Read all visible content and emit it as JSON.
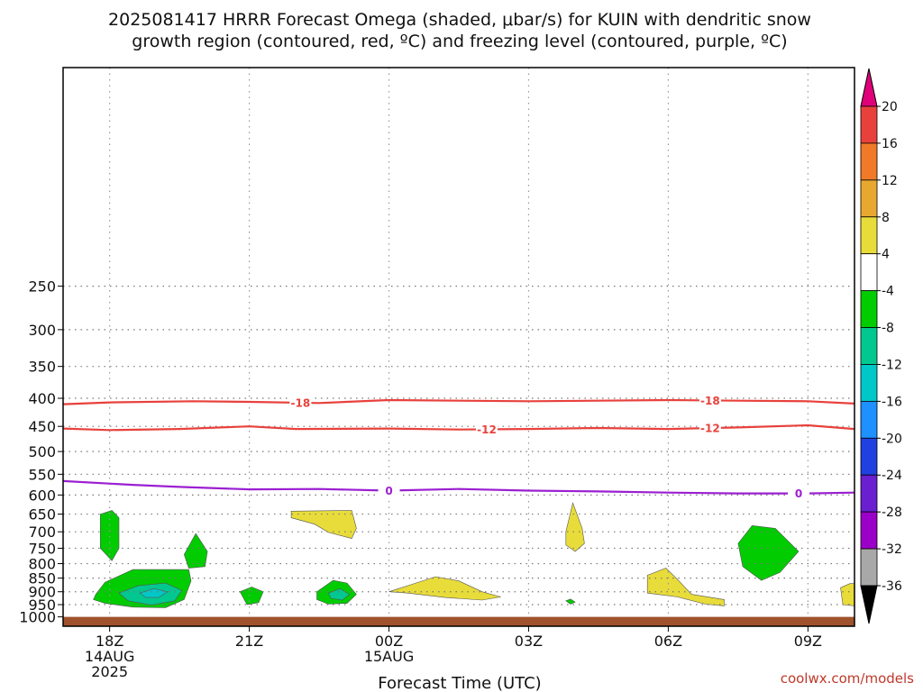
{
  "chart_data": {
    "type": "time-height cross section",
    "title_lines": [
      "2025081417 HRRR Forecast Omega (shaded, μbar/s) for KUIN with dendritic snow",
      "growth region (contoured, red, ºC) and freezing level (contoured, purple, ºC)"
    ],
    "xlabel": "Forecast Time (UTC)",
    "credit": "coolwx.com/models",
    "x_range_hours": [
      -1.0,
      16.0
    ],
    "y_range_hpa": [
      100,
      1040
    ],
    "y_scale": "log-pressure, inverted",
    "grid": "dotted",
    "x_ticks": [
      {
        "hour": 0,
        "lines": [
          "18Z",
          "14AUG",
          "2025"
        ]
      },
      {
        "hour": 3,
        "lines": [
          "21Z"
        ]
      },
      {
        "hour": 6,
        "lines": [
          "00Z",
          "15AUG"
        ]
      },
      {
        "hour": 9,
        "lines": [
          "03Z"
        ]
      },
      {
        "hour": 12,
        "lines": [
          "06Z"
        ]
      },
      {
        "hour": 15,
        "lines": [
          "09Z"
        ]
      }
    ],
    "y_ticks": [
      250,
      300,
      350,
      400,
      450,
      500,
      550,
      600,
      650,
      700,
      750,
      800,
      850,
      900,
      950,
      1000
    ],
    "ground_level_hpa": 1000,
    "ground_color": "#a0522d",
    "contours": [
      {
        "label": "-18",
        "color": "#e8413c",
        "label_hours": [
          4.1,
          12.9
        ],
        "points": [
          [
            -1.0,
            410
          ],
          [
            0,
            407
          ],
          [
            1.8,
            405
          ],
          [
            3,
            406
          ],
          [
            4.5,
            408
          ],
          [
            6,
            403
          ],
          [
            7.5,
            404
          ],
          [
            9,
            405
          ],
          [
            10.5,
            404
          ],
          [
            12,
            403
          ],
          [
            13.5,
            404
          ],
          [
            15,
            405
          ],
          [
            16,
            409
          ]
        ]
      },
      {
        "label": "-12",
        "color": "#e8413c",
        "label_hours": [
          8.1,
          12.9
        ],
        "points": [
          [
            -1.0,
            454
          ],
          [
            0,
            457
          ],
          [
            1.5,
            455
          ],
          [
            3,
            450
          ],
          [
            4,
            455
          ],
          [
            6,
            454
          ],
          [
            7.5,
            456
          ],
          [
            9,
            455
          ],
          [
            10.5,
            453
          ],
          [
            12,
            455
          ],
          [
            13.5,
            452
          ],
          [
            15,
            448
          ],
          [
            16,
            455
          ]
        ]
      },
      {
        "label": "0",
        "color": "#9b1fd1",
        "label_hours": [
          6.0,
          14.8
        ],
        "points": [
          [
            -1.0,
            566
          ],
          [
            0.5,
            575
          ],
          [
            1.5,
            580
          ],
          [
            3,
            586
          ],
          [
            4.5,
            585
          ],
          [
            6,
            589
          ],
          [
            7.5,
            585
          ],
          [
            9,
            589
          ],
          [
            10.5,
            591
          ],
          [
            12,
            594
          ],
          [
            13.5,
            596
          ],
          [
            15,
            596
          ],
          [
            16,
            594
          ]
        ]
      }
    ],
    "shaded_regions": [
      {
        "omega": "-8 to -4",
        "color": "#00cc00",
        "points": [
          [
            -0.2,
            650
          ],
          [
            0.05,
            640
          ],
          [
            0.2,
            660
          ],
          [
            0.2,
            750
          ],
          [
            0.05,
            790
          ],
          [
            -0.2,
            750
          ]
        ]
      },
      {
        "omega": "-8 to -4",
        "color": "#00cc00",
        "points": [
          [
            1.6,
            770
          ],
          [
            1.85,
            705
          ],
          [
            2.1,
            760
          ],
          [
            2.05,
            810
          ],
          [
            1.7,
            815
          ]
        ]
      },
      {
        "omega": "-8 to -4",
        "color": "#00cc00",
        "points": [
          [
            -0.3,
            910
          ],
          [
            -0.1,
            865
          ],
          [
            0.5,
            820
          ],
          [
            1.7,
            820
          ],
          [
            1.75,
            860
          ],
          [
            1.6,
            930
          ],
          [
            1.2,
            962
          ],
          [
            0.5,
            960
          ],
          [
            -0.1,
            945
          ],
          [
            -0.35,
            930
          ]
        ]
      },
      {
        "omega": "-12 to -8",
        "color": "#00c890",
        "points": [
          [
            0.2,
            905
          ],
          [
            0.6,
            878
          ],
          [
            1.2,
            868
          ],
          [
            1.55,
            895
          ],
          [
            1.4,
            935
          ],
          [
            0.9,
            952
          ],
          [
            0.4,
            935
          ]
        ]
      },
      {
        "omega": "-16 to -12",
        "color": "#00c8c8",
        "points": [
          [
            0.65,
            905
          ],
          [
            0.95,
            888
          ],
          [
            1.25,
            900
          ],
          [
            1.05,
            922
          ],
          [
            0.78,
            922
          ]
        ]
      },
      {
        "omega": "-8 to -4",
        "color": "#00cc00",
        "points": [
          [
            2.8,
            900
          ],
          [
            3.05,
            882
          ],
          [
            3.3,
            900
          ],
          [
            3.2,
            942
          ],
          [
            2.95,
            950
          ]
        ]
      },
      {
        "omega": "-8 to -4",
        "color": "#00cc00",
        "points": [
          [
            4.45,
            900
          ],
          [
            4.8,
            858
          ],
          [
            5.1,
            868
          ],
          [
            5.3,
            910
          ],
          [
            5.1,
            945
          ],
          [
            4.7,
            948
          ],
          [
            4.45,
            930
          ]
        ]
      },
      {
        "omega": "-12 to -8",
        "color": "#00c890",
        "points": [
          [
            4.7,
            905
          ],
          [
            4.95,
            888
          ],
          [
            5.15,
            910
          ],
          [
            5.0,
            932
          ],
          [
            4.75,
            925
          ]
        ]
      },
      {
        "omega": "-8 to -4",
        "color": "#00cc00",
        "points": [
          [
            9.8,
            935
          ],
          [
            9.9,
            928
          ],
          [
            10.0,
            940
          ],
          [
            9.9,
            948
          ]
        ]
      },
      {
        "omega": "-8 to -4",
        "color": "#00cc00",
        "points": [
          [
            13.5,
            735
          ],
          [
            13.8,
            682
          ],
          [
            14.3,
            690
          ],
          [
            14.8,
            760
          ],
          [
            14.4,
            830
          ],
          [
            14.0,
            858
          ],
          [
            13.6,
            810
          ]
        ]
      },
      {
        "omega": "4 to 8",
        "color": "#e8dc3a",
        "points": [
          [
            3.9,
            642
          ],
          [
            5.2,
            640
          ],
          [
            5.3,
            690
          ],
          [
            5.2,
            720
          ],
          [
            4.7,
            702
          ],
          [
            4.4,
            678
          ],
          [
            3.9,
            660
          ]
        ]
      },
      {
        "omega": "4 to 8",
        "color": "#e8dc3a",
        "points": [
          [
            6.0,
            900
          ],
          [
            6.5,
            872
          ],
          [
            7.0,
            845
          ],
          [
            7.5,
            860
          ],
          [
            8.0,
            900
          ],
          [
            8.4,
            920
          ],
          [
            8.0,
            932
          ],
          [
            7.2,
            922
          ],
          [
            6.4,
            905
          ]
        ]
      },
      {
        "omega": "4 to 8",
        "color": "#e8dc3a",
        "points": [
          [
            9.8,
            700
          ],
          [
            9.95,
            620
          ],
          [
            10.15,
            690
          ],
          [
            10.2,
            735
          ],
          [
            10.0,
            760
          ],
          [
            9.8,
            740
          ]
        ]
      },
      {
        "omega": "4 to 8",
        "color": "#e8dc3a",
        "points": [
          [
            11.55,
            840
          ],
          [
            11.95,
            815
          ],
          [
            12.2,
            855
          ],
          [
            12.5,
            910
          ],
          [
            13.2,
            930
          ],
          [
            13.2,
            955
          ],
          [
            12.8,
            948
          ],
          [
            12.2,
            920
          ],
          [
            11.55,
            905
          ]
        ]
      },
      {
        "omega": "4 to 8",
        "color": "#e8dc3a",
        "points": [
          [
            15.7,
            885
          ],
          [
            15.9,
            870
          ],
          [
            16.5,
            870
          ],
          [
            16.45,
            920
          ],
          [
            16.1,
            955
          ],
          [
            15.75,
            950
          ]
        ]
      }
    ],
    "colorbar": {
      "label_values": [
        20,
        16,
        12,
        8,
        4,
        -4,
        -8,
        -12,
        -16,
        -20,
        -24,
        -28,
        -32,
        -36
      ],
      "bins": [
        {
          "range": "16 to 20",
          "color": "#e8413c"
        },
        {
          "range": "12 to 16",
          "color": "#f07a28"
        },
        {
          "range": "8 to 12",
          "color": "#e8a830"
        },
        {
          "range": "4 to 8",
          "color": "#e8dc3a"
        },
        {
          "range": "-4 to 4",
          "color": "#ffffff"
        },
        {
          "range": "-8 to -4",
          "color": "#00cc00"
        },
        {
          "range": "-12 to -8",
          "color": "#00c890"
        },
        {
          "range": "-16 to -12",
          "color": "#00c8c8"
        },
        {
          "range": "-20 to -16",
          "color": "#1e90ff"
        },
        {
          "range": "-24 to -20",
          "color": "#2040e0"
        },
        {
          "range": "-28 to -24",
          "color": "#6a1fd1"
        },
        {
          "range": "-32 to -28",
          "color": "#9b00c8"
        },
        {
          "range": "-36 to -32",
          "color": "#a8a8a8"
        }
      ],
      "top_arrow_color": "#e0007a",
      "bottom_arrow_color": "#000000"
    }
  }
}
